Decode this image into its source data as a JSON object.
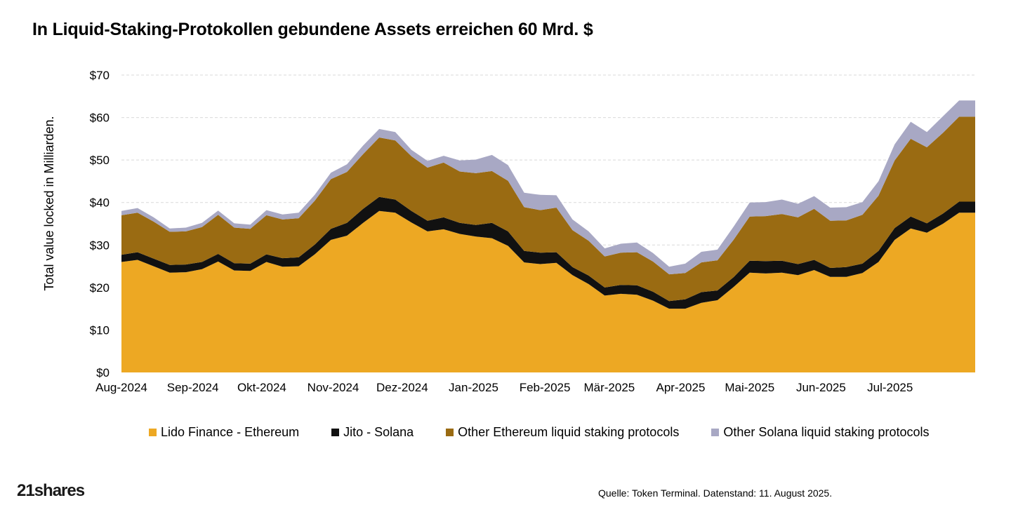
{
  "title": "In Liquid-Staking-Protokollen gebundene Assets erreichen 60 Mrd. $",
  "source": "Quelle: Token Terminal. Datenstand: 11. August 2025.",
  "brand": "21shares",
  "colors": {
    "lido": "#EDA823",
    "jito": "#111111",
    "other_eth": "#9A6B12",
    "other_sol": "#A8A8C4",
    "grid": "#D9D9D9"
  },
  "chart_data": {
    "type": "area",
    "stacked": true,
    "ylabel": "Total value locked in Milliarden.",
    "ylim": [
      0,
      70
    ],
    "yticks": [
      "$0",
      "$10",
      "$20",
      "$30",
      "$40",
      "$50",
      "$60",
      "$70"
    ],
    "yticks_values": [
      0,
      10,
      20,
      30,
      40,
      50,
      60,
      70
    ],
    "xtick_labels": [
      "Aug-2024",
      "Sep-2024",
      "Okt-2024",
      "Nov-2024",
      "Dez-2024",
      "Jan-2025",
      "Feb-2025",
      "Mär-2025",
      "Apr-2025",
      "Mai-2025",
      "Jun-2025",
      "Jul-2025"
    ],
    "x": [
      "2024-08-01",
      "2024-08-08",
      "2024-08-15",
      "2024-08-22",
      "2024-08-29",
      "2024-09-05",
      "2024-09-12",
      "2024-09-19",
      "2024-09-26",
      "2024-10-03",
      "2024-10-10",
      "2024-10-17",
      "2024-10-24",
      "2024-10-31",
      "2024-11-07",
      "2024-11-14",
      "2024-11-21",
      "2024-11-28",
      "2024-12-05",
      "2024-12-12",
      "2024-12-19",
      "2024-12-26",
      "2025-01-02",
      "2025-01-09",
      "2025-01-16",
      "2025-01-23",
      "2025-01-30",
      "2025-02-06",
      "2025-02-13",
      "2025-02-20",
      "2025-02-27",
      "2025-03-06",
      "2025-03-13",
      "2025-03-20",
      "2025-03-27",
      "2025-04-03",
      "2025-04-10",
      "2025-04-17",
      "2025-04-24",
      "2025-05-01",
      "2025-05-08",
      "2025-05-15",
      "2025-05-22",
      "2025-05-29",
      "2025-06-05",
      "2025-06-12",
      "2025-06-19",
      "2025-06-26",
      "2025-07-03",
      "2025-07-10",
      "2025-07-17",
      "2025-07-24",
      "2025-07-31",
      "2025-08-07"
    ],
    "grid": "horizontal-dashed",
    "legend_position": "bottom",
    "series": [
      {
        "name": "Lido Finance - Ethereum",
        "color_key": "lido",
        "values": [
          26.0,
          26.5,
          25.0,
          23.5,
          23.6,
          24.3,
          26.1,
          24.0,
          23.9,
          26.0,
          24.9,
          25.0,
          27.8,
          31.2,
          32.2,
          35.2,
          38.0,
          37.6,
          35.3,
          33.2,
          33.7,
          32.6,
          32.0,
          31.6,
          29.8,
          25.9,
          25.5,
          25.8,
          22.9,
          20.8,
          18.1,
          18.5,
          18.3,
          16.9,
          15.0,
          15.0,
          16.4,
          17.0,
          20.1,
          23.5,
          23.3,
          23.5,
          22.9,
          24.1,
          22.5,
          22.5,
          23.4,
          26.0,
          31.2,
          33.9,
          32.9,
          35.0,
          37.6,
          37.6
        ]
      },
      {
        "name": "Jito - Solana",
        "color_key": "jito",
        "values": [
          1.7,
          1.8,
          1.8,
          1.8,
          1.8,
          1.7,
          1.8,
          1.7,
          1.7,
          1.8,
          2.0,
          2.1,
          2.3,
          2.6,
          3.0,
          3.3,
          3.3,
          3.1,
          2.7,
          2.5,
          2.8,
          2.6,
          2.7,
          3.6,
          3.4,
          2.7,
          2.7,
          2.5,
          1.9,
          2.0,
          1.9,
          2.1,
          2.2,
          2.1,
          1.8,
          2.2,
          2.5,
          2.3,
          2.3,
          2.8,
          2.9,
          2.8,
          2.6,
          2.4,
          2.1,
          2.3,
          2.2,
          2.6,
          2.8,
          2.8,
          2.2,
          2.4,
          2.6,
          2.6
        ]
      },
      {
        "name": "Other Ethereum liquid staking protocols",
        "color_key": "other_eth",
        "values": [
          9.3,
          9.3,
          8.7,
          7.8,
          7.8,
          8.2,
          9.2,
          8.4,
          8.2,
          9.2,
          9.1,
          9.2,
          10.3,
          11.7,
          12.0,
          12.9,
          14.0,
          13.9,
          12.9,
          12.5,
          12.9,
          12.1,
          12.2,
          12.2,
          11.9,
          10.3,
          10.0,
          10.5,
          8.7,
          8.2,
          7.3,
          7.6,
          7.8,
          7.1,
          6.3,
          6.2,
          7.0,
          7.1,
          8.8,
          10.4,
          10.6,
          11.0,
          11.0,
          12.0,
          11.1,
          11.0,
          11.5,
          13.0,
          15.9,
          18.3,
          17.9,
          19.0,
          20.0,
          20.0
        ]
      },
      {
        "name": "Other Solana liquid staking protocols",
        "color_key": "other_sol",
        "values": [
          1.0,
          1.1,
          1.0,
          0.8,
          0.9,
          1.0,
          1.0,
          1.0,
          1.0,
          1.2,
          1.2,
          1.3,
          1.4,
          1.5,
          1.8,
          2.0,
          2.0,
          2.0,
          1.5,
          1.6,
          1.6,
          2.6,
          3.2,
          3.8,
          3.7,
          3.4,
          3.6,
          2.9,
          2.5,
          2.2,
          1.9,
          2.1,
          2.3,
          2.0,
          1.8,
          2.2,
          2.5,
          2.5,
          3.1,
          3.3,
          3.3,
          3.4,
          3.2,
          3.0,
          3.1,
          3.1,
          3.0,
          3.4,
          3.8,
          4.0,
          3.6,
          3.9,
          3.8,
          3.8
        ]
      }
    ]
  }
}
